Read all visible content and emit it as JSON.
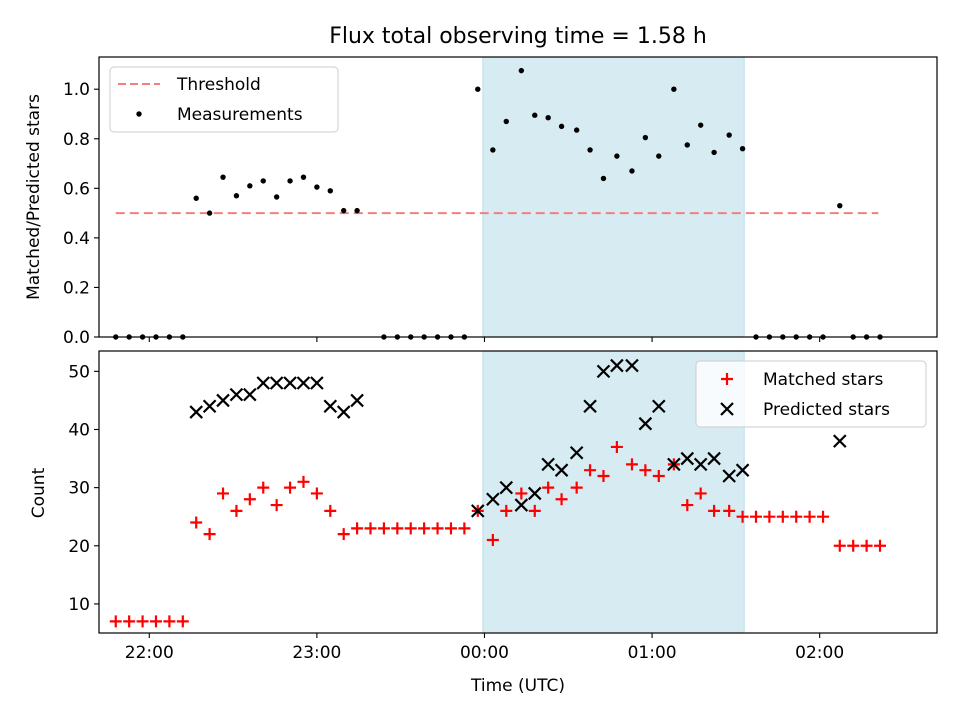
{
  "chart_data": [
    {
      "type": "scatter",
      "title": "Flux total observing time = 1.58 h",
      "xlabel": "",
      "ylabel": "Matched/Predicted stars",
      "xlim": [
        -2.3,
        2.7
      ],
      "ylim": [
        0,
        1.13
      ],
      "yticks": [
        0.0,
        0.2,
        0.4,
        0.6,
        0.8,
        1.0
      ],
      "ytick_labels": [
        "0.0",
        "0.2",
        "0.4",
        "0.6",
        "0.8",
        "1.0"
      ],
      "highlight_span": [
        -0.01,
        1.55
      ],
      "legend_position": "upper left",
      "threshold": {
        "name": "Threshold",
        "y": 0.5,
        "x_range": [
          -2.2,
          2.35
        ],
        "color": "#f08080",
        "style": "dashed"
      },
      "series": [
        {
          "name": "Measurements",
          "color": "#000000",
          "marker": "dot",
          "points": [
            [
              -2.2,
              0
            ],
            [
              -2.12,
              0
            ],
            [
              -2.04,
              0
            ],
            [
              -1.96,
              0
            ],
            [
              -1.88,
              0
            ],
            [
              -1.8,
              0
            ],
            [
              -1.72,
              0.56
            ],
            [
              -1.64,
              0.5
            ],
            [
              -1.56,
              0.645
            ],
            [
              -1.48,
              0.57
            ],
            [
              -1.4,
              0.61
            ],
            [
              -1.32,
              0.63
            ],
            [
              -1.24,
              0.565
            ],
            [
              -1.16,
              0.63
            ],
            [
              -1.08,
              0.645
            ],
            [
              -1.0,
              0.605
            ],
            [
              -0.92,
              0.59
            ],
            [
              -0.84,
              0.51
            ],
            [
              -0.76,
              0.51
            ],
            [
              -0.6,
              0
            ],
            [
              -0.52,
              0
            ],
            [
              -0.44,
              0
            ],
            [
              -0.36,
              0
            ],
            [
              -0.28,
              0
            ],
            [
              -0.2,
              0
            ],
            [
              -0.12,
              0
            ],
            [
              -0.04,
              1.0
            ],
            [
              0.05,
              0.755
            ],
            [
              0.13,
              0.87
            ],
            [
              0.22,
              1.075
            ],
            [
              0.3,
              0.895
            ],
            [
              0.38,
              0.885
            ],
            [
              0.46,
              0.85
            ],
            [
              0.55,
              0.835
            ],
            [
              0.63,
              0.755
            ],
            [
              0.71,
              0.64
            ],
            [
              0.79,
              0.73
            ],
            [
              0.88,
              0.67
            ],
            [
              0.96,
              0.805
            ],
            [
              1.04,
              0.73
            ],
            [
              1.13,
              1.0
            ],
            [
              1.21,
              0.775
            ],
            [
              1.29,
              0.855
            ],
            [
              1.37,
              0.745
            ],
            [
              1.46,
              0.815
            ],
            [
              1.54,
              0.76
            ],
            [
              1.62,
              0
            ],
            [
              1.7,
              0
            ],
            [
              1.78,
              0
            ],
            [
              1.86,
              0
            ],
            [
              1.94,
              0
            ],
            [
              2.02,
              0
            ],
            [
              2.12,
              0.53
            ],
            [
              2.2,
              0
            ],
            [
              2.28,
              0
            ],
            [
              2.36,
              0
            ]
          ]
        }
      ]
    },
    {
      "type": "scatter",
      "title": "",
      "xlabel": "Time (UTC)",
      "ylabel": "Count",
      "xlim": [
        -2.3,
        2.7
      ],
      "ylim": [
        5,
        53.5
      ],
      "yticks": [
        10,
        20,
        30,
        40,
        50
      ],
      "ytick_labels": [
        "10",
        "20",
        "30",
        "40",
        "50"
      ],
      "xticks": [
        -2,
        -1,
        0,
        1,
        2
      ],
      "xtick_labels": [
        "22:00",
        "23:00",
        "00:00",
        "01:00",
        "02:00"
      ],
      "highlight_span": [
        -0.01,
        1.55
      ],
      "legend_position": "upper right",
      "series": [
        {
          "name": "Matched stars",
          "color": "#ff0000",
          "marker": "plus",
          "points": [
            [
              -2.2,
              7
            ],
            [
              -2.12,
              7
            ],
            [
              -2.04,
              7
            ],
            [
              -1.96,
              7
            ],
            [
              -1.88,
              7
            ],
            [
              -1.8,
              7
            ],
            [
              -1.72,
              24
            ],
            [
              -1.64,
              22
            ],
            [
              -1.56,
              29
            ],
            [
              -1.48,
              26
            ],
            [
              -1.4,
              28
            ],
            [
              -1.32,
              30
            ],
            [
              -1.24,
              27
            ],
            [
              -1.16,
              30
            ],
            [
              -1.08,
              31
            ],
            [
              -1.0,
              29
            ],
            [
              -0.92,
              26
            ],
            [
              -0.84,
              22
            ],
            [
              -0.76,
              23
            ],
            [
              -0.68,
              23
            ],
            [
              -0.6,
              23
            ],
            [
              -0.52,
              23
            ],
            [
              -0.44,
              23
            ],
            [
              -0.36,
              23
            ],
            [
              -0.28,
              23
            ],
            [
              -0.2,
              23
            ],
            [
              -0.12,
              23
            ],
            [
              -0.04,
              26
            ],
            [
              0.05,
              21
            ],
            [
              0.13,
              26
            ],
            [
              0.22,
              29
            ],
            [
              0.3,
              26
            ],
            [
              0.38,
              30
            ],
            [
              0.46,
              28
            ],
            [
              0.55,
              30
            ],
            [
              0.63,
              33
            ],
            [
              0.71,
              32
            ],
            [
              0.79,
              37
            ],
            [
              0.88,
              34
            ],
            [
              0.96,
              33
            ],
            [
              1.04,
              32
            ],
            [
              1.13,
              34
            ],
            [
              1.21,
              27
            ],
            [
              1.29,
              29
            ],
            [
              1.37,
              26
            ],
            [
              1.46,
              26
            ],
            [
              1.54,
              25
            ],
            [
              1.62,
              25
            ],
            [
              1.7,
              25
            ],
            [
              1.78,
              25
            ],
            [
              1.86,
              25
            ],
            [
              1.94,
              25
            ],
            [
              2.02,
              25
            ],
            [
              2.12,
              20
            ],
            [
              2.2,
              20
            ],
            [
              2.28,
              20
            ],
            [
              2.36,
              20
            ]
          ]
        },
        {
          "name": "Predicted stars",
          "color": "#000000",
          "marker": "x",
          "points": [
            [
              -1.72,
              43
            ],
            [
              -1.64,
              44
            ],
            [
              -1.56,
              45
            ],
            [
              -1.48,
              46
            ],
            [
              -1.4,
              46
            ],
            [
              -1.32,
              48
            ],
            [
              -1.24,
              48
            ],
            [
              -1.16,
              48
            ],
            [
              -1.08,
              48
            ],
            [
              -1.0,
              48
            ],
            [
              -0.92,
              44
            ],
            [
              -0.84,
              43
            ],
            [
              -0.76,
              45
            ],
            [
              -0.04,
              26
            ],
            [
              0.05,
              28
            ],
            [
              0.13,
              30
            ],
            [
              0.22,
              27
            ],
            [
              0.3,
              29
            ],
            [
              0.38,
              34
            ],
            [
              0.46,
              33
            ],
            [
              0.55,
              36
            ],
            [
              0.63,
              44
            ],
            [
              0.71,
              50
            ],
            [
              0.79,
              51
            ],
            [
              0.88,
              51
            ],
            [
              0.96,
              41
            ],
            [
              1.04,
              44
            ],
            [
              1.13,
              34
            ],
            [
              1.21,
              35
            ],
            [
              1.29,
              34
            ],
            [
              1.37,
              35
            ],
            [
              1.46,
              32
            ],
            [
              1.54,
              33
            ],
            [
              2.12,
              38
            ]
          ]
        }
      ]
    }
  ]
}
